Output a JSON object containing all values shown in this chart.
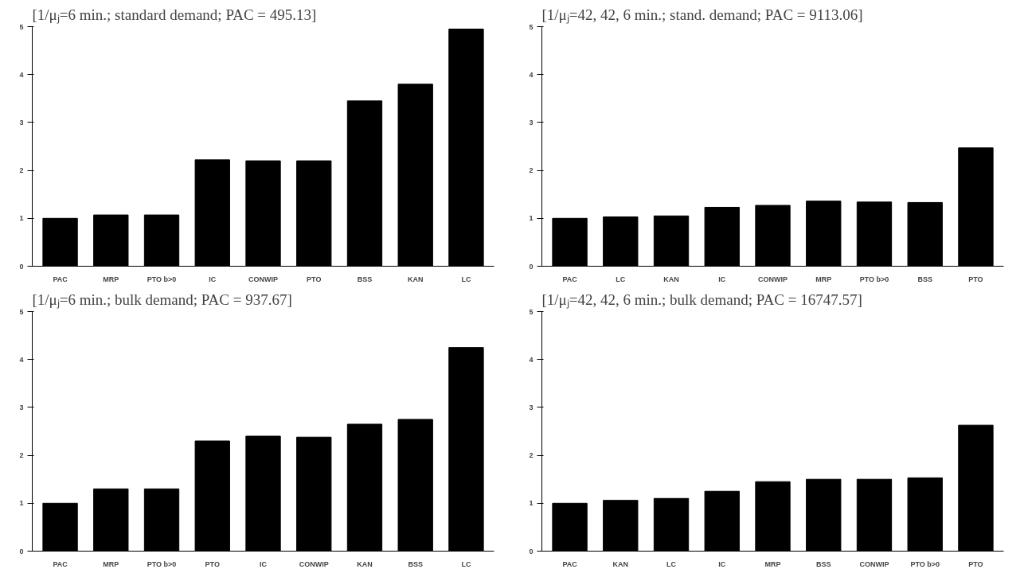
{
  "chart_data": [
    {
      "type": "bar",
      "title": "[1/μⱼ=6 min.; standard demand; PAC = 495.13]",
      "categories": [
        "PAC",
        "MRP",
        "PTO b>0",
        "IC",
        "CONWIP",
        "PTO",
        "BSS",
        "KAN",
        "LC"
      ],
      "values": [
        1.0,
        1.07,
        1.07,
        2.22,
        2.2,
        2.2,
        3.45,
        3.8,
        4.95
      ],
      "color": "#000000",
      "ylim": [
        0,
        5
      ],
      "yticks": [
        0,
        1,
        2,
        3,
        4,
        5
      ],
      "grid": false
    },
    {
      "type": "bar",
      "title": "[1/μⱼ=42, 42, 6 min.; stand. demand; PAC = 9113.06]",
      "categories": [
        "PAC",
        "LC",
        "KAN",
        "IC",
        "CONWIP",
        "MRP",
        "PTO b>0",
        "BSS",
        "PTO"
      ],
      "values": [
        1.0,
        1.03,
        1.05,
        1.23,
        1.27,
        1.36,
        1.34,
        1.33,
        2.47
      ],
      "color": "#000000",
      "ylim": [
        0,
        5
      ],
      "yticks": [
        0,
        1,
        2,
        3,
        4,
        5
      ],
      "grid": false
    },
    {
      "type": "bar",
      "title": "[1/μⱼ=6 min.; bulk demand; PAC = 937.67]",
      "categories": [
        "PAC",
        "MRP",
        "PTO b>0",
        "PTO",
        "IC",
        "CONWIP",
        "KAN",
        "BSS",
        "LC"
      ],
      "values": [
        1.0,
        1.3,
        1.3,
        2.3,
        2.4,
        2.38,
        2.65,
        2.75,
        4.25
      ],
      "color": "#000000",
      "ylim": [
        0,
        5
      ],
      "yticks": [
        0,
        1,
        2,
        3,
        4,
        5
      ],
      "grid": false
    },
    {
      "type": "bar",
      "title": "[1/μⱼ=42, 42, 6 min.; bulk demand; PAC = 16747.57]",
      "categories": [
        "PAC",
        "KAN",
        "LC",
        "IC",
        "MRP",
        "BSS",
        "CONWIP",
        "PTO b>0",
        "PTO"
      ],
      "values": [
        1.0,
        1.06,
        1.1,
        1.25,
        1.45,
        1.5,
        1.5,
        1.53,
        2.63
      ],
      "color": "#000000",
      "ylim": [
        0,
        5
      ],
      "yticks": [
        0,
        1,
        2,
        3,
        4,
        5
      ],
      "grid": false
    }
  ]
}
